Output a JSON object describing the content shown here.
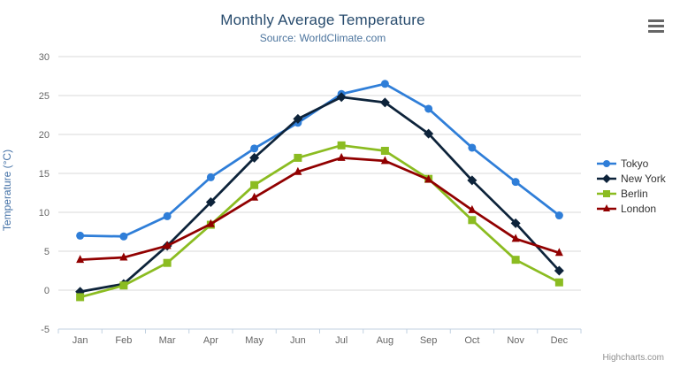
{
  "header": {
    "title": "Monthly Average Temperature",
    "subtitle": "Source: WorldClimate.com"
  },
  "credits": {
    "label": "Highcharts.com"
  },
  "chart_data": {
    "type": "line",
    "title": "Monthly Average Temperature",
    "subtitle": "Source: WorldClimate.com",
    "xlabel": "",
    "ylabel": "Temperature (°C)",
    "ylim": [
      -5,
      30
    ],
    "y_ticks": [
      -5,
      0,
      5,
      10,
      15,
      20,
      25,
      30
    ],
    "grid": true,
    "legend_position": "right",
    "categories": [
      "Jan",
      "Feb",
      "Mar",
      "Apr",
      "May",
      "Jun",
      "Jul",
      "Aug",
      "Sep",
      "Oct",
      "Nov",
      "Dec"
    ],
    "series": [
      {
        "name": "Tokyo",
        "color": "#2f7ed8",
        "marker": "circle",
        "values": [
          7.0,
          6.9,
          9.5,
          14.5,
          18.2,
          21.5,
          25.2,
          26.5,
          23.3,
          18.3,
          13.9,
          9.6
        ]
      },
      {
        "name": "New York",
        "color": "#0d233a",
        "marker": "diamond",
        "values": [
          -0.2,
          0.8,
          5.7,
          11.3,
          17.0,
          22.0,
          24.8,
          24.1,
          20.1,
          14.1,
          8.6,
          2.5
        ]
      },
      {
        "name": "Berlin",
        "color": "#8bbc21",
        "marker": "square",
        "values": [
          -0.9,
          0.6,
          3.5,
          8.4,
          13.5,
          17.0,
          18.6,
          17.9,
          14.3,
          9.0,
          3.9,
          1.0
        ]
      },
      {
        "name": "London",
        "color": "#910000",
        "marker": "triangle",
        "values": [
          3.9,
          4.2,
          5.7,
          8.5,
          11.9,
          15.2,
          17.0,
          16.6,
          14.2,
          10.3,
          6.6,
          4.8
        ]
      }
    ]
  }
}
